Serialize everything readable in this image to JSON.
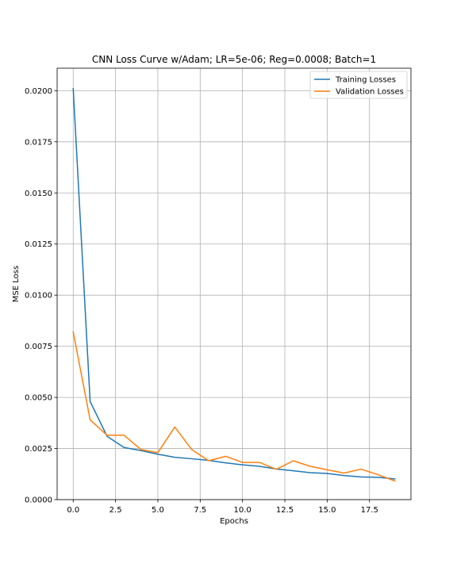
{
  "chart_data": {
    "type": "line",
    "title": "CNN Loss Curve w/Adam; LR=5e-06; Reg=0.0008; Batch=1",
    "xlabel": "Epochs",
    "ylabel": "MSE Loss",
    "xlim": [
      -0.95,
      19.95
    ],
    "ylim": [
      0,
      0.0211
    ],
    "xticks": [
      0.0,
      2.5,
      5.0,
      7.5,
      10.0,
      12.5,
      15.0,
      17.5
    ],
    "xtick_labels": [
      "0.0",
      "2.5",
      "5.0",
      "7.5",
      "10.0",
      "12.5",
      "15.0",
      "17.5"
    ],
    "yticks": [
      0.0,
      0.0025,
      0.005,
      0.0075,
      0.01,
      0.0125,
      0.015,
      0.0175,
      0.02
    ],
    "ytick_labels": [
      "0.0000",
      "0.0025",
      "0.0050",
      "0.0075",
      "0.0100",
      "0.0125",
      "0.0150",
      "0.0175",
      "0.0200"
    ],
    "grid": true,
    "legend_position": "top-right",
    "x": [
      0,
      1,
      2,
      3,
      4,
      5,
      6,
      7,
      8,
      9,
      10,
      11,
      12,
      13,
      14,
      15,
      16,
      17,
      18,
      19
    ],
    "series": [
      {
        "name": "Training Losses",
        "color": "#1f77b4",
        "values": [
          0.0201,
          0.0048,
          0.0031,
          0.00255,
          0.0024,
          0.00222,
          0.00207,
          0.002,
          0.00192,
          0.0018,
          0.0017,
          0.00163,
          0.0015,
          0.00141,
          0.00132,
          0.00128,
          0.00118,
          0.00111,
          0.00109,
          0.00101
        ]
      },
      {
        "name": "Validation Losses",
        "color": "#ff7f0e",
        "values": [
          0.0082,
          0.0039,
          0.00315,
          0.00315,
          0.00245,
          0.0023,
          0.00355,
          0.00245,
          0.0019,
          0.00212,
          0.00182,
          0.00182,
          0.00148,
          0.0019,
          0.00163,
          0.00146,
          0.0013,
          0.00149,
          0.00122,
          0.00091
        ]
      }
    ]
  }
}
